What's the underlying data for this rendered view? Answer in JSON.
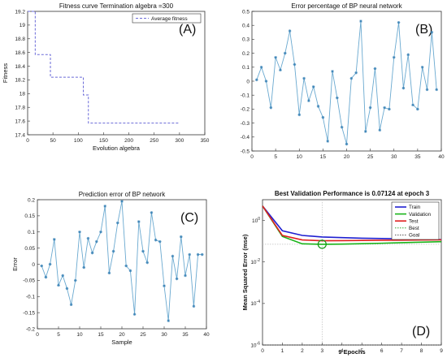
{
  "colors": {
    "axis": "#333333",
    "fitness_line": "#6a6ad8",
    "series_line": "#6aa9d0",
    "marker": "#3f86b8",
    "train": "#1f1fd0",
    "validation": "#19b419",
    "test": "#e01f1f",
    "best": "#119911",
    "goal": "#222222",
    "grid": "#bdbdbd"
  },
  "chart_data": [
    {
      "panel": "A",
      "panel_label": "(A)",
      "type": "line",
      "title": "Fitness curve  Termination algebra =300",
      "xlabel": "Evolution algebra",
      "ylabel": "Fitness",
      "xlim": [
        0,
        350
      ],
      "ylim": [
        17.4,
        19.2
      ],
      "xticks": [
        0,
        50,
        100,
        150,
        200,
        250,
        300,
        350
      ],
      "yticks": [
        17.4,
        17.6,
        17.8,
        18.0,
        18.2,
        18.4,
        18.6,
        18.8,
        19.0,
        19.2
      ],
      "ytick_labels": [
        "17.4",
        "17.6",
        "17.8",
        "18",
        "18.2",
        "18.4",
        "18.6",
        "18.8",
        "19",
        "19.2"
      ],
      "legend": [
        "Average fitness"
      ],
      "legend_position": "top-right",
      "series": [
        {
          "name": "Average fitness",
          "style": "dashed-step",
          "x": [
            0,
            15,
            15,
            45,
            45,
            110,
            110,
            120,
            120,
            300
          ],
          "y": [
            19.2,
            19.2,
            18.57,
            18.57,
            18.24,
            18.24,
            17.98,
            17.98,
            17.57,
            17.57
          ]
        }
      ]
    },
    {
      "panel": "B",
      "panel_label": "(B)",
      "type": "line",
      "title": "Error percentage of BP neural network",
      "xlim": [
        0,
        40
      ],
      "ylim": [
        -0.5,
        0.5
      ],
      "xticks": [
        0,
        5,
        10,
        15,
        20,
        25,
        30,
        35,
        40
      ],
      "yticks": [
        -0.5,
        -0.4,
        -0.3,
        -0.2,
        -0.1,
        0,
        0.1,
        0.2,
        0.3,
        0.4,
        0.5
      ],
      "x": [
        1,
        2,
        3,
        4,
        5,
        6,
        7,
        8,
        9,
        10,
        11,
        12,
        13,
        14,
        15,
        16,
        17,
        18,
        19,
        20,
        21,
        22,
        23,
        24,
        25,
        26,
        27,
        28,
        29,
        30,
        31,
        32,
        33,
        34,
        35,
        36,
        37,
        38,
        39
      ],
      "values": [
        0.01,
        0.1,
        0.0,
        -0.19,
        0.17,
        0.08,
        0.2,
        0.36,
        0.12,
        -0.24,
        0.02,
        -0.14,
        -0.04,
        -0.18,
        -0.26,
        -0.43,
        0.07,
        -0.12,
        -0.33,
        -0.45,
        0.02,
        0.06,
        0.43,
        -0.36,
        -0.19,
        0.09,
        -0.35,
        -0.19,
        -0.2,
        0.17,
        0.42,
        -0.05,
        0.19,
        -0.17,
        -0.2,
        0.1,
        -0.06,
        0.35,
        -0.06
      ]
    },
    {
      "panel": "C",
      "panel_label": "(C)",
      "type": "line",
      "title": "Prediction error of BP network",
      "xlabel": "Sample",
      "ylabel": "Error",
      "xlim": [
        0,
        40
      ],
      "ylim": [
        -0.2,
        0.2
      ],
      "xticks": [
        0,
        5,
        10,
        15,
        20,
        25,
        30,
        35,
        40
      ],
      "yticks": [
        -0.2,
        -0.15,
        -0.1,
        -0.05,
        0,
        0.05,
        0.1,
        0.15,
        0.2
      ],
      "x": [
        1,
        2,
        3,
        4,
        5,
        6,
        7,
        8,
        9,
        10,
        11,
        12,
        13,
        14,
        15,
        16,
        17,
        18,
        19,
        20,
        21,
        22,
        23,
        24,
        25,
        26,
        27,
        28,
        29,
        30,
        31,
        32,
        33,
        34,
        35,
        36,
        37,
        38,
        39
      ],
      "values": [
        -0.005,
        -0.04,
        0.0,
        0.077,
        -0.065,
        -0.035,
        -0.075,
        -0.125,
        -0.05,
        0.1,
        -0.01,
        0.08,
        0.035,
        0.07,
        0.1,
        0.18,
        -0.027,
        0.04,
        0.128,
        0.195,
        -0.005,
        -0.02,
        -0.155,
        0.132,
        0.04,
        0.005,
        0.16,
        0.075,
        0.07,
        -0.067,
        -0.175,
        0.025,
        -0.045,
        0.085,
        -0.035,
        0.03,
        -0.13,
        0.03,
        0.03
      ]
    },
    {
      "panel": "D",
      "panel_label": "(D)",
      "type": "line",
      "title": "Best Validation Performance is 0.07124 at epoch 3",
      "xlabel": "9 Epochs",
      "ylabel": "Mean Squared Error  (mse)",
      "yscale": "log",
      "xlim": [
        0,
        9
      ],
      "ylim_exponents": [
        -6,
        1
      ],
      "xticks": [
        0,
        1,
        2,
        3,
        4,
        5,
        6,
        7,
        8,
        9
      ],
      "ytick_exponents": [
        -6,
        -4,
        -2,
        0
      ],
      "legend": [
        "Train",
        "Validation",
        "Test",
        "Best",
        "Goal"
      ],
      "legend_position": "top-right",
      "best_epoch": 3,
      "best_value": 0.07124,
      "goal_value": 1e-06,
      "series": [
        {
          "name": "Train",
          "x": [
            0,
            1,
            2,
            3,
            4,
            5,
            6,
            7,
            8,
            9
          ],
          "y": [
            5.0,
            0.32,
            0.19,
            0.16,
            0.15,
            0.14,
            0.135,
            0.13,
            0.125,
            0.12
          ]
        },
        {
          "name": "Validation",
          "x": [
            0,
            1,
            2,
            3,
            4,
            5,
            6,
            7,
            8,
            9
          ],
          "y": [
            5.0,
            0.17,
            0.075,
            0.07124,
            0.073,
            0.076,
            0.08,
            0.085,
            0.09,
            0.095
          ]
        },
        {
          "name": "Test",
          "x": [
            0,
            1,
            2,
            3,
            4,
            5,
            6,
            7,
            8,
            9
          ],
          "y": [
            5.0,
            0.19,
            0.115,
            0.105,
            0.107,
            0.109,
            0.111,
            0.113,
            0.115,
            0.117
          ]
        }
      ]
    }
  ]
}
